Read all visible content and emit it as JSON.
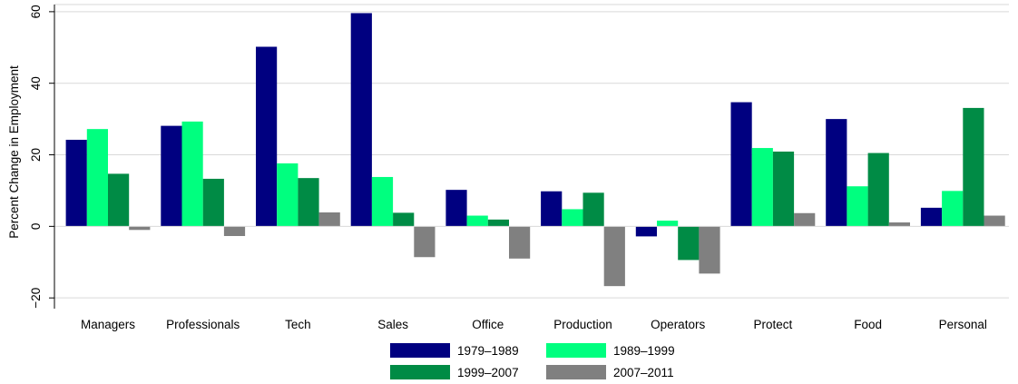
{
  "chart_data": {
    "type": "bar",
    "ylabel": "Percent Change in Employment",
    "xlabel": "",
    "ylim": [
      -23,
      62
    ],
    "yticks": [
      -20,
      0,
      20,
      40,
      60
    ],
    "grid": true,
    "legend_position": "bottom",
    "categories": [
      "Managers",
      "Professionals",
      "Tech",
      "Sales",
      "Office",
      "Production",
      "Operators",
      "Protect",
      "Food",
      "Personal"
    ],
    "series": [
      {
        "name": "1979–1989",
        "color": "#000080",
        "values": [
          24.2,
          28.1,
          50.2,
          59.6,
          10.2,
          9.8,
          -2.8,
          34.7,
          30.0,
          5.2
        ]
      },
      {
        "name": "1989–1999",
        "color": "#00ff7f",
        "values": [
          27.2,
          29.3,
          17.6,
          13.8,
          3.0,
          4.8,
          1.6,
          21.9,
          11.2,
          9.9
        ]
      },
      {
        "name": "1999–2007",
        "color": "#008b45",
        "values": [
          14.7,
          13.3,
          13.5,
          3.8,
          1.9,
          9.4,
          -9.4,
          20.9,
          20.5,
          33.1
        ]
      },
      {
        "name": "2007–2011",
        "color": "#808080",
        "values": [
          -1.0,
          -2.7,
          3.9,
          -8.6,
          -9.0,
          -16.7,
          -13.2,
          3.7,
          1.1,
          3.0
        ]
      }
    ]
  }
}
